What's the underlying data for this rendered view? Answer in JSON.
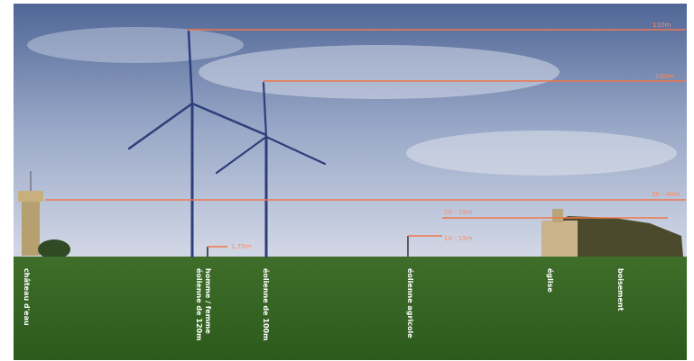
{
  "height_labels": {
    "h120": "120m",
    "h100": "100m",
    "h30_40": "30 - 40m",
    "h20_25": "20 - 25m",
    "h10_15": "10 - 15m",
    "h1_70": "1,70m"
  },
  "object_labels": {
    "water_tower": "château d'eau",
    "person": "homme / femme",
    "turbine_120": "éolienne de 120m",
    "turbine_100": "éolienne de 100m",
    "farm_turbine": "éolienne agricole",
    "church": "église",
    "woodland": "boisement"
  }
}
